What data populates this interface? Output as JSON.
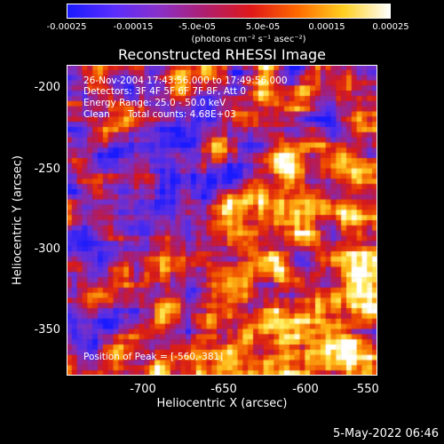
{
  "colorbar": {
    "ticks": [
      "-0.00025",
      "-0.00015",
      "-5.0e-05",
      "5.0e-05",
      "0.00015",
      "0.00025"
    ],
    "unit_text": "(photons cm⁻² s⁻¹ asec⁻²)",
    "colors": [
      "#1a1aff",
      "#5a2dff",
      "#8a30c8",
      "#b01e6e",
      "#e01818",
      "#ff6a00",
      "#ffd020",
      "#ffffff"
    ]
  },
  "title": "Reconstructed RHESSI Image",
  "info": {
    "line1": "26-Nov-2004 17:43:56.000 to 17:49:56.000",
    "line2": "Detectors: 3F 4F 5F 6F 7F 8F, Att 0",
    "line3": "Energy Range: 25.0 - 50.0 keV",
    "line4": "Clean      Total counts: 4.68E+03",
    "peak": "Position of Peak = [-560,-381]"
  },
  "axes": {
    "xlabel": "Heliocentric X (arcsec)",
    "ylabel": "Heliocentric Y (arcsec)",
    "xticks": [
      "-700",
      "-650",
      "-600",
      "-550"
    ],
    "yticks": [
      "-200",
      "-250",
      "-300",
      "-350"
    ]
  },
  "footer_date": "5-May-2022 06:46",
  "chart_data": {
    "type": "heatmap",
    "title": "Reconstructed RHESSI Image",
    "xlabel": "Heliocentric X (arcsec)",
    "ylabel": "Heliocentric Y (arcsec)",
    "xlim": [
      -737,
      -547
    ],
    "ylim": [
      -381,
      -190
    ],
    "colorbar_range": [
      -0.00025,
      0.00025
    ],
    "peak_position": [
      -560,
      -381
    ],
    "grid": false
  }
}
